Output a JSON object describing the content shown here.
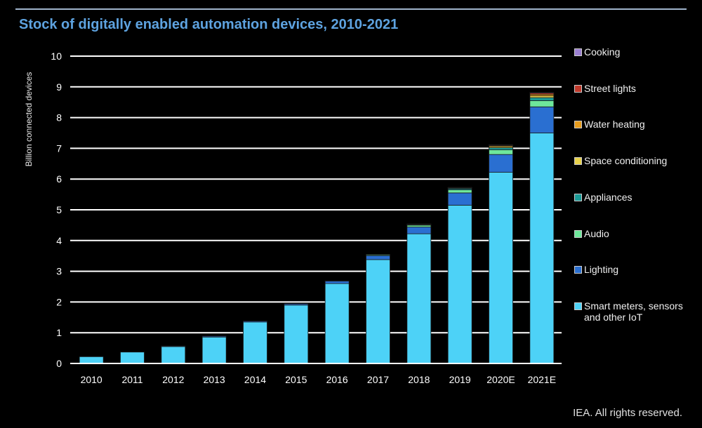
{
  "page": {
    "title": "Stock of digitally enabled automation devices, 2010-2021",
    "footer": "IEA. All rights reserved."
  },
  "chart_data": {
    "type": "bar",
    "stacked": true,
    "title": "Stock of digitally enabled automation devices, 2010-2021",
    "ylabel": "Billion connected devices",
    "xlabel": "",
    "ylim": [
      0,
      10
    ],
    "yticks": [
      "0",
      "1",
      "2",
      "3",
      "4",
      "5",
      "6",
      "7",
      "8",
      "9",
      "10"
    ],
    "grid": true,
    "legend_position": "right",
    "categories": [
      "2010",
      "2011",
      "2012",
      "2013",
      "2014",
      "2015",
      "2016",
      "2017",
      "2018",
      "2019",
      "2020E",
      "2021E"
    ],
    "series": [
      {
        "name": "Smart meters, sensors and other IoT",
        "color": "#4dd2f7",
        "values": [
          0.22,
          0.37,
          0.55,
          0.86,
          1.35,
          1.9,
          2.6,
          3.38,
          4.22,
          5.15,
          6.22,
          7.5
        ]
      },
      {
        "name": "Lighting",
        "color": "#2a6fd1",
        "values": [
          0.0,
          0.0,
          0.02,
          0.03,
          0.03,
          0.04,
          0.08,
          0.13,
          0.22,
          0.4,
          0.58,
          0.85
        ]
      },
      {
        "name": "Audio",
        "color": "#6ee89b",
        "values": [
          0.0,
          0.0,
          0.0,
          0.0,
          0.0,
          0.0,
          0.01,
          0.03,
          0.06,
          0.1,
          0.15,
          0.2
        ]
      },
      {
        "name": "Appliances",
        "color": "#1a9a96",
        "values": [
          0.0,
          0.0,
          0.0,
          0.0,
          0.0,
          0.0,
          0.0,
          0.01,
          0.02,
          0.04,
          0.07,
          0.1
        ]
      },
      {
        "name": "Space conditioning",
        "color": "#e8d14a",
        "values": [
          0.0,
          0.0,
          0.0,
          0.0,
          0.0,
          0.0,
          0.0,
          0.0,
          0.01,
          0.02,
          0.04,
          0.06
        ]
      },
      {
        "name": "Water heating",
        "color": "#e79c1c",
        "values": [
          0.0,
          0.0,
          0.0,
          0.0,
          0.0,
          0.0,
          0.0,
          0.0,
          0.01,
          0.01,
          0.03,
          0.05
        ]
      },
      {
        "name": "Street lights",
        "color": "#c0392b",
        "values": [
          0.0,
          0.0,
          0.0,
          0.0,
          0.0,
          0.0,
          0.0,
          0.0,
          0.0,
          0.01,
          0.02,
          0.04
        ]
      },
      {
        "name": "Cooking",
        "color": "#9b7fd1",
        "values": [
          0.0,
          0.0,
          0.0,
          0.0,
          0.0,
          0.0,
          0.0,
          0.0,
          0.0,
          0.0,
          0.01,
          0.02
        ]
      }
    ]
  }
}
